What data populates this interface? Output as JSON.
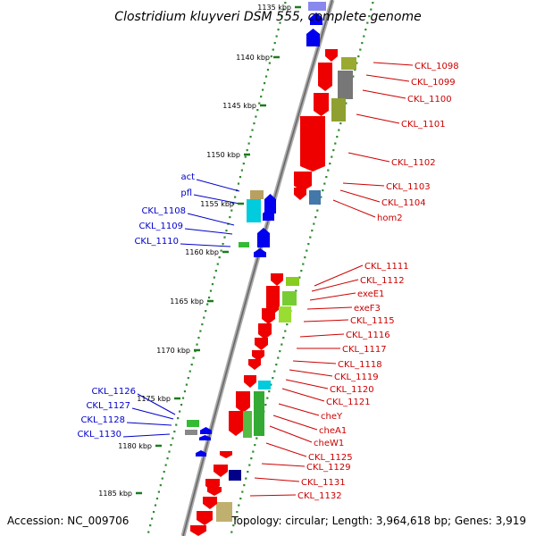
{
  "title": "Clostridium kluyveri DSM 555, complete genome",
  "accession": "Accession: NC_009706",
  "topology": "Topology: circular; Length: 3,964,618 bp; Genes: 3,919",
  "colors": {
    "backbone": "#8c8c8c",
    "dots": "#2e8b2e",
    "forward_label": "#0000cc",
    "reverse_label": "#cc0000"
  },
  "ticks": [
    {
      "label": "1135 kbp"
    },
    {
      "label": "1140 kbp"
    },
    {
      "label": "1145 kbp"
    },
    {
      "label": "1150 kbp"
    },
    {
      "label": "1155 kbp"
    },
    {
      "label": "1160 kbp"
    },
    {
      "label": "1165 kbp"
    },
    {
      "label": "1170 kbp"
    },
    {
      "label": "1175 kbp"
    },
    {
      "label": "1180 kbp"
    },
    {
      "label": "1185 kbp"
    }
  ],
  "forward_genes": [
    "act",
    "pfl",
    "CKL_1108",
    "CKL_1109",
    "CKL_1110",
    "CKL_1126",
    "CKL_1127",
    "CKL_1128",
    "CKL_1130"
  ],
  "reverse_genes": [
    "CKL_1098",
    "CKL_1099",
    "CKL_1100",
    "CKL_1101",
    "CKL_1102",
    "CKL_1103",
    "CKL_1104",
    "hom2",
    "CKL_1111",
    "CKL_1112",
    "exeE1",
    "exeF3",
    "CKL_1115",
    "CKL_1116",
    "CKL_1117",
    "CKL_1118",
    "CKL_1119",
    "CKL_1120",
    "CKL_1121",
    "cheY",
    "cheA1",
    "cheW1",
    "CKL_1125",
    "CKL_1129",
    "CKL_1131",
    "CKL_1132"
  ]
}
